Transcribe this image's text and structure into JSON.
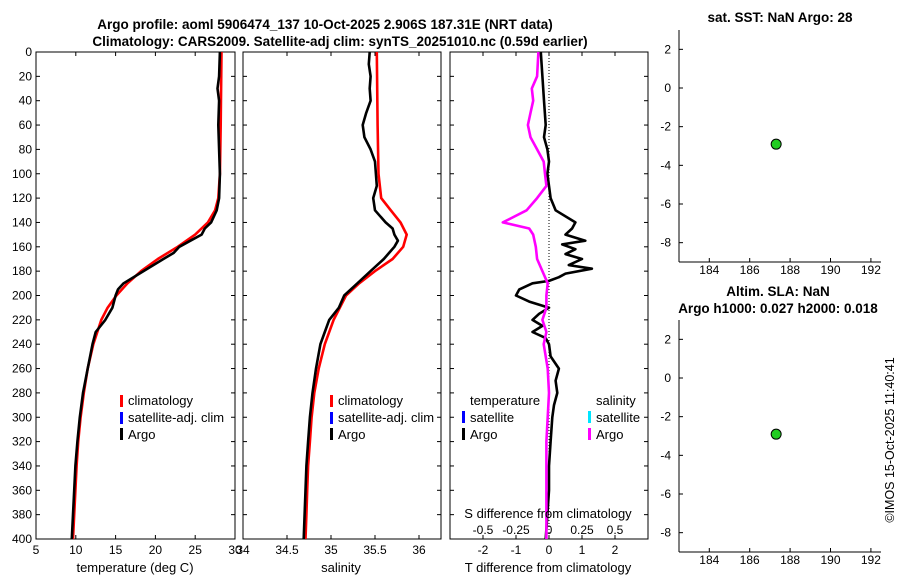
{
  "header": {
    "line1": "Argo profile: aoml 5906474_137 10-Oct-2025 2.906S 187.31E (NRT data)",
    "line2": "Climatology: CARS2009. Satellite-adj clim: synTS_20251010.nc (0.59d earlier)"
  },
  "stamp": "©IMOS 15-Oct-2025 11:40:41",
  "colors": {
    "climatology": "#ff0000",
    "satellite_adj": "#0000ff",
    "argo": "#000000",
    "t_satellite": "#0000ff",
    "s_satellite": "#00e5ff",
    "s_argo": "#ff00ff",
    "marker": "#22cc22"
  },
  "chart_data": [
    {
      "id": "temperature",
      "type": "line",
      "xlabel": "temperature (deg C)",
      "ylim": [
        400,
        0
      ],
      "xlim": [
        5,
        30
      ],
      "xticks": [
        5,
        10,
        15,
        20,
        25,
        30
      ],
      "yticks": [
        0,
        20,
        40,
        60,
        80,
        100,
        120,
        140,
        160,
        180,
        200,
        220,
        240,
        260,
        280,
        300,
        320,
        340,
        360,
        380,
        400
      ],
      "legend": [
        "climatology",
        "satellite-adj. clim",
        "Argo"
      ],
      "series": [
        {
          "name": "climatology",
          "color": "#ff0000",
          "depth": [
            0,
            60,
            100,
            120,
            130,
            140,
            150,
            160,
            170,
            180,
            190,
            200,
            210,
            220,
            240,
            260,
            280,
            300,
            320,
            340,
            360,
            380,
            400
          ],
          "values": [
            28.3,
            28.2,
            28.1,
            27.9,
            27.5,
            26.6,
            25.0,
            22.8,
            20.3,
            18.2,
            16.5,
            15.1,
            14.0,
            13.2,
            12.2,
            11.5,
            11.0,
            10.6,
            10.3,
            10.1,
            9.95,
            9.8,
            9.65
          ]
        },
        {
          "name": "Argo",
          "color": "#000000",
          "depth": [
            0,
            20,
            30,
            40,
            60,
            80,
            100,
            120,
            130,
            140,
            145,
            150,
            155,
            160,
            165,
            170,
            180,
            190,
            195,
            200,
            210,
            220,
            230,
            240,
            260,
            280,
            300,
            320,
            340,
            360,
            380,
            400
          ],
          "values": [
            28.1,
            28.0,
            27.8,
            28.0,
            27.9,
            28.0,
            28.1,
            28.0,
            27.7,
            27.0,
            26.2,
            25.8,
            24.4,
            23.0,
            22.3,
            21.0,
            18.5,
            16.0,
            15.3,
            15.0,
            14.6,
            13.7,
            12.5,
            12.1,
            11.5,
            10.9,
            10.5,
            10.2,
            9.95,
            9.8,
            9.65,
            9.5
          ]
        }
      ]
    },
    {
      "id": "salinity",
      "type": "line",
      "xlabel": "salinity",
      "ylim": [
        400,
        0
      ],
      "xlim": [
        34,
        36.25
      ],
      "xticks": [
        34,
        34.5,
        35,
        35.5,
        36
      ],
      "xtick_labels": [
        "34",
        "34.5",
        "35",
        "35.5",
        "36"
      ],
      "legend": [
        "climatology",
        "satellite-adj. clim",
        "Argo"
      ],
      "series": [
        {
          "name": "climatology",
          "color": "#ff0000",
          "depth": [
            0,
            60,
            100,
            120,
            130,
            140,
            150,
            160,
            170,
            180,
            190,
            200,
            220,
            240,
            260,
            280,
            300,
            320,
            340,
            360,
            380,
            400
          ],
          "values": [
            35.52,
            35.53,
            35.54,
            35.57,
            35.68,
            35.79,
            35.86,
            35.82,
            35.7,
            35.5,
            35.32,
            35.17,
            35.03,
            34.93,
            34.86,
            34.81,
            34.78,
            34.76,
            34.74,
            34.73,
            34.72,
            34.71
          ]
        },
        {
          "name": "Argo",
          "color": "#000000",
          "depth": [
            0,
            10,
            20,
            30,
            40,
            50,
            60,
            70,
            80,
            90,
            100,
            110,
            120,
            130,
            140,
            145,
            150,
            155,
            160,
            165,
            170,
            180,
            190,
            200,
            210,
            220,
            230,
            240,
            260,
            280,
            300,
            320,
            340,
            360,
            380,
            400
          ],
          "values": [
            35.44,
            35.43,
            35.45,
            35.44,
            35.45,
            35.4,
            35.36,
            35.38,
            35.45,
            35.5,
            35.51,
            35.52,
            35.48,
            35.5,
            35.62,
            35.7,
            35.72,
            35.76,
            35.72,
            35.66,
            35.6,
            35.45,
            35.3,
            35.15,
            35.09,
            34.98,
            34.93,
            34.88,
            34.83,
            34.79,
            34.76,
            34.74,
            34.72,
            34.71,
            34.7,
            34.69
          ]
        }
      ]
    },
    {
      "id": "difference",
      "type": "line",
      "xlabel": "T difference from climatology",
      "top_label": "S difference from climatology",
      "ylim": [
        400,
        0
      ],
      "xlim": [
        -3,
        3
      ],
      "xticks": [
        -2,
        -1,
        0,
        1,
        2
      ],
      "top_xlim": [
        -0.75,
        0.75
      ],
      "top_xticks": [
        -0.5,
        -0.25,
        0,
        0.25,
        0.5
      ],
      "top_xtick_labels": [
        "-0.5",
        "-0.25",
        "0",
        "0.25",
        "0.5"
      ],
      "legend_temperature": {
        "title": "temperature",
        "items": [
          "satellite",
          "Argo"
        ]
      },
      "legend_salinity": {
        "title": "salinity",
        "items": [
          "satellite",
          "Argo"
        ]
      },
      "series": [
        {
          "name": "T Argo",
          "color": "#000000",
          "axis": "bottom",
          "depth": [
            0,
            20,
            40,
            60,
            70,
            80,
            90,
            100,
            110,
            120,
            130,
            140,
            145,
            150,
            155,
            158,
            162,
            166,
            170,
            175,
            178,
            182,
            185,
            188,
            190,
            195,
            200,
            205,
            210,
            215,
            220,
            225,
            230,
            235,
            240,
            250,
            260,
            270,
            280,
            290,
            300,
            320,
            340,
            360,
            380,
            400
          ],
          "values": [
            -0.25,
            -0.2,
            -0.15,
            -0.1,
            -0.15,
            -0.05,
            0.0,
            -0.05,
            0.0,
            0.05,
            0.2,
            0.8,
            0.7,
            0.5,
            1.1,
            0.4,
            0.8,
            0.5,
            1.0,
            0.6,
            1.3,
            0.5,
            0.3,
            0.0,
            -0.5,
            -0.9,
            -1.0,
            -0.6,
            0.0,
            -0.3,
            -0.5,
            -0.2,
            -0.5,
            -0.1,
            0.0,
            0.05,
            0.3,
            0.2,
            0.25,
            0.15,
            0.1,
            0.05,
            0.0,
            0.0,
            -0.05,
            -0.1
          ]
        },
        {
          "name": "S Argo",
          "color": "#ff00ff",
          "axis": "top",
          "depth": [
            0,
            20,
            30,
            40,
            50,
            60,
            70,
            80,
            90,
            100,
            110,
            120,
            130,
            135,
            140,
            145,
            150,
            160,
            170,
            180,
            190,
            200,
            210,
            220,
            230,
            240,
            260,
            280,
            300,
            320,
            340,
            360,
            380,
            400
          ],
          "values": [
            -0.08,
            -0.09,
            -0.13,
            -0.12,
            -0.14,
            -0.16,
            -0.14,
            -0.09,
            -0.04,
            -0.03,
            -0.02,
            -0.09,
            -0.17,
            -0.26,
            -0.35,
            -0.15,
            -0.12,
            -0.1,
            -0.09,
            -0.05,
            -0.01,
            -0.02,
            -0.02,
            -0.05,
            -0.02,
            -0.04,
            -0.01,
            0.0,
            -0.01,
            -0.02,
            -0.02,
            -0.02,
            -0.02,
            -0.02
          ]
        }
      ]
    },
    {
      "id": "sst",
      "type": "scatter",
      "title": "sat. SST: NaN Argo: 28",
      "xlim": [
        182.5,
        192.5
      ],
      "ylim": [
        -9,
        3
      ],
      "xticks": [
        184,
        186,
        188,
        190,
        192
      ],
      "yticks": [
        2,
        0,
        -2,
        -4,
        -6,
        -8
      ],
      "points": [
        {
          "x": 187.31,
          "y": -2.906
        }
      ]
    },
    {
      "id": "sla",
      "type": "scatter",
      "title": "Altim. SLA: NaN",
      "subtitle": "Argo h1000: 0.027 h2000: 0.018",
      "xlim": [
        182.5,
        192.5
      ],
      "ylim": [
        -9,
        3
      ],
      "xticks": [
        184,
        186,
        188,
        190,
        192
      ],
      "yticks": [
        2,
        0,
        -2,
        -4,
        -6,
        -8
      ],
      "points": [
        {
          "x": 187.31,
          "y": -2.906
        }
      ]
    }
  ]
}
